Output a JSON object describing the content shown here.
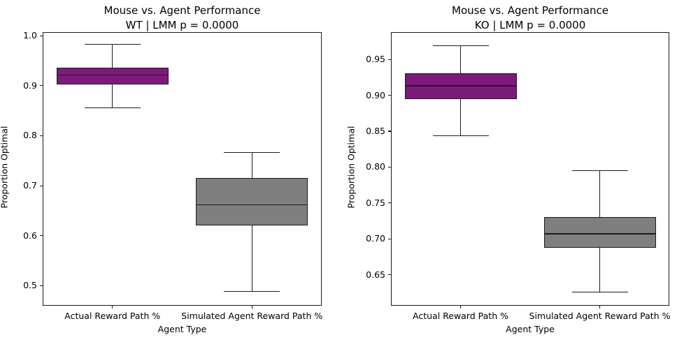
{
  "colors": {
    "background": "#ffffff",
    "line": "#1b1b1b",
    "mouse_box_fill": "#7c1a7c",
    "agent_box_fill": "#7f7f7f"
  },
  "chart_data": [
    {
      "type": "box",
      "title_line1": "Mouse vs. Agent Performance",
      "title_line2": "WT | LMM p = 0.0000",
      "xlabel": "Agent Type",
      "ylabel": "Proportion Optimal",
      "categories": [
        "Actual Reward Path %",
        "Simulated Agent Reward Path %"
      ],
      "ylim": [
        0.46,
        1.007
      ],
      "yticks": [
        0.5,
        0.6,
        0.7,
        0.8,
        0.9,
        1.0
      ],
      "ytick_labels": [
        "0.5",
        "0.6",
        "0.7",
        "0.8",
        "0.9",
        "1.0"
      ],
      "grid": false,
      "legend": false,
      "series": [
        {
          "name": "Actual Reward Path %",
          "whisker_low": 0.856,
          "q1": 0.903,
          "median": 0.921,
          "q3": 0.936,
          "whisker_high": 0.983,
          "fill": "#7c1a7c"
        },
        {
          "name": "Simulated Agent Reward Path %",
          "whisker_low": 0.489,
          "q1": 0.621,
          "median": 0.662,
          "q3": 0.716,
          "whisker_high": 0.766,
          "fill": "#7f7f7f"
        }
      ]
    },
    {
      "type": "box",
      "title_line1": "Mouse vs. Agent Performance",
      "title_line2": "KO | LMM p = 0.0000",
      "xlabel": "Agent Type",
      "ylabel": "Proportion Optimal",
      "categories": [
        "Actual Reward Path %",
        "Simulated Agent Reward Path %"
      ],
      "ylim": [
        0.607,
        0.988
      ],
      "yticks": [
        0.65,
        0.7,
        0.75,
        0.8,
        0.85,
        0.9,
        0.95
      ],
      "ytick_labels": [
        "0.65",
        "0.70",
        "0.75",
        "0.80",
        "0.85",
        "0.90",
        "0.95"
      ],
      "grid": false,
      "legend": false,
      "series": [
        {
          "name": "Actual Reward Path %",
          "whisker_low": 0.844,
          "q1": 0.895,
          "median": 0.913,
          "q3": 0.931,
          "whisker_high": 0.969,
          "fill": "#7c1a7c"
        },
        {
          "name": "Simulated Agent Reward Path %",
          "whisker_low": 0.626,
          "q1": 0.688,
          "median": 0.707,
          "q3": 0.73,
          "whisker_high": 0.795,
          "fill": "#7f7f7f"
        }
      ]
    }
  ]
}
